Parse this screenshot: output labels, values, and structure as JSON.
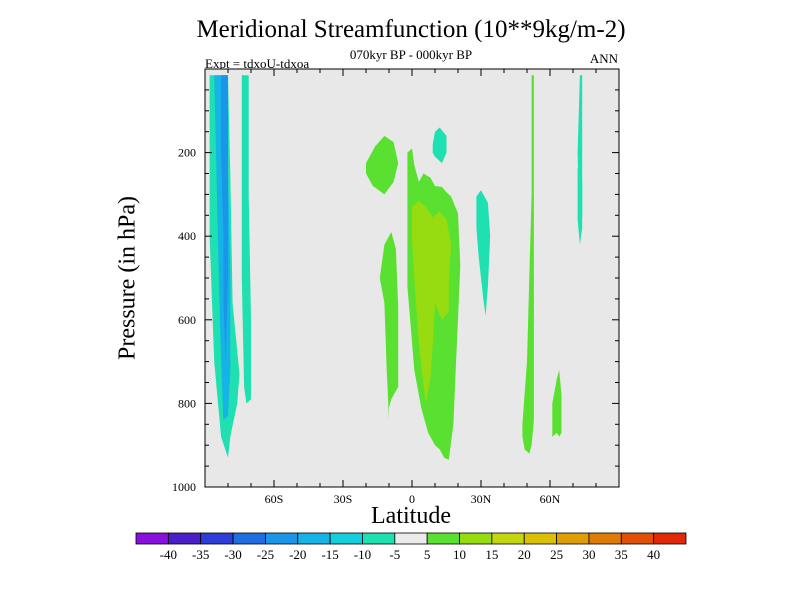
{
  "chart_data": {
    "type": "contour",
    "title": "Meridional Streamfunction (10**9kg/m-2)",
    "subtitle": "070kyr BP - 000kyr BP",
    "experiment_label": "Expt = tdxoU-tdxoa",
    "season_label": "ANN",
    "xlabel": "Latitude",
    "ylabel": "Pressure (in hPa)",
    "x_ticks": [
      {
        "value": -60,
        "label": "60S"
      },
      {
        "value": -30,
        "label": "30S"
      },
      {
        "value": 0,
        "label": "0"
      },
      {
        "value": 30,
        "label": "30N"
      },
      {
        "value": 60,
        "label": "60N"
      }
    ],
    "y_ticks": [
      200,
      400,
      600,
      800,
      1000
    ],
    "xlim": [
      -90,
      90
    ],
    "ylim": [
      1000,
      0
    ],
    "background_color": "#e8e8e8",
    "contour_levels": [
      -40,
      -35,
      -30,
      -25,
      -20,
      -15,
      -10,
      -5,
      5,
      10,
      15,
      20,
      25,
      30,
      35,
      40
    ],
    "colorbar_colors": [
      "#8a10e0",
      "#4a1ec8",
      "#2e3cd8",
      "#1e6ee2",
      "#1a96e8",
      "#16b4e6",
      "#14cedc",
      "#1ee0b0",
      "#ebebeb",
      "#5ae030",
      "#96dc10",
      "#c4d610",
      "#dcc008",
      "#e09e06",
      "#e07a06",
      "#e05006",
      "#e02a06"
    ],
    "regions": [
      {
        "level": -10,
        "color": "#1ee0b0",
        "points": [
          [
            -88,
            15
          ],
          [
            -80,
            15
          ],
          [
            -79,
            250
          ],
          [
            -78,
            560
          ],
          [
            -75,
            730
          ],
          [
            -76,
            800
          ],
          [
            -79,
            880
          ],
          [
            -80,
            930
          ],
          [
            -83,
            880
          ],
          [
            -86,
            700
          ],
          [
            -88,
            400
          ]
        ]
      },
      {
        "level": -10,
        "color": "#1ee0b0",
        "points": [
          [
            -74,
            15
          ],
          [
            -71,
            15
          ],
          [
            -71,
            300
          ],
          [
            -70,
            600
          ],
          [
            -70,
            790
          ],
          [
            -72,
            800
          ],
          [
            -73,
            760
          ],
          [
            -74,
            500
          ],
          [
            -74,
            200
          ]
        ]
      },
      {
        "level": -15,
        "color": "#16b4e6",
        "points": [
          [
            -86,
            15
          ],
          [
            -80,
            15
          ],
          [
            -80,
            250
          ],
          [
            -79,
            500
          ],
          [
            -79,
            720
          ],
          [
            -80,
            830
          ],
          [
            -82,
            840
          ],
          [
            -83,
            700
          ],
          [
            -84,
            500
          ],
          [
            -85,
            250
          ]
        ]
      },
      {
        "level": -20,
        "color": "#1a96e8",
        "points": [
          [
            -83,
            15
          ],
          [
            -80,
            15
          ],
          [
            -80,
            200
          ],
          [
            -80,
            500
          ],
          [
            -81,
            700
          ],
          [
            -82,
            560
          ],
          [
            -82,
            400
          ],
          [
            -83,
            200
          ]
        ]
      },
      {
        "level": 5,
        "color": "#5ae030",
        "points": [
          [
            -20,
            225
          ],
          [
            -16,
            185
          ],
          [
            -12,
            160
          ],
          [
            -8,
            175
          ],
          [
            -6,
            225
          ],
          [
            -8,
            270
          ],
          [
            -12,
            300
          ],
          [
            -17,
            280
          ],
          [
            -20,
            250
          ]
        ]
      },
      {
        "level": 5,
        "color": "#5ae030",
        "points": [
          [
            -12,
            560
          ],
          [
            -14,
            500
          ],
          [
            -12,
            420
          ],
          [
            -9,
            390
          ],
          [
            -7,
            430
          ],
          [
            -6,
            570
          ],
          [
            -6,
            760
          ],
          [
            -9,
            790
          ],
          [
            -10,
            810
          ],
          [
            -10,
            840
          ],
          [
            -11,
            720
          ]
        ]
      },
      {
        "level": 5,
        "color": "#5ae030",
        "points": [
          [
            -2,
            200
          ],
          [
            0,
            190
          ],
          [
            1,
            230
          ],
          [
            3,
            270
          ],
          [
            5,
            250
          ],
          [
            8,
            260
          ],
          [
            10,
            280
          ],
          [
            13,
            282
          ],
          [
            15,
            295
          ],
          [
            17,
            305
          ],
          [
            20,
            345
          ],
          [
            21,
            470
          ],
          [
            20,
            600
          ],
          [
            19,
            720
          ],
          [
            18,
            850
          ],
          [
            16,
            935
          ],
          [
            14,
            930
          ],
          [
            12,
            910
          ],
          [
            10,
            900
          ],
          [
            7,
            870
          ],
          [
            4,
            810
          ],
          [
            1,
            720
          ],
          [
            -2,
            520
          ],
          [
            -2,
            380
          ],
          [
            -2,
            260
          ]
        ]
      },
      {
        "level": 10,
        "color": "#96dc10",
        "points": [
          [
            0,
            330
          ],
          [
            3,
            315
          ],
          [
            6,
            330
          ],
          [
            9,
            355
          ],
          [
            12,
            340
          ],
          [
            15,
            360
          ],
          [
            17,
            420
          ],
          [
            16,
            510
          ],
          [
            16,
            580
          ],
          [
            13,
            600
          ],
          [
            10,
            560
          ],
          [
            9,
            660
          ],
          [
            8,
            740
          ],
          [
            6,
            800
          ],
          [
            3,
            660
          ],
          [
            1,
            500
          ],
          [
            0,
            410
          ]
        ]
      },
      {
        "level": 5,
        "color": "#5ae030",
        "points": [
          [
            52,
            15
          ],
          [
            53,
            15
          ],
          [
            53,
            150
          ],
          [
            53,
            400
          ],
          [
            53,
            640
          ],
          [
            53,
            840
          ],
          [
            52,
            900
          ],
          [
            51,
            920
          ],
          [
            49,
            910
          ],
          [
            48,
            880
          ],
          [
            48,
            850
          ],
          [
            50,
            700
          ],
          [
            51,
            500
          ],
          [
            52,
            300
          ]
        ]
      },
      {
        "level": 5,
        "color": "#5ae030",
        "points": [
          [
            63,
            740
          ],
          [
            64,
            720
          ],
          [
            65,
            780
          ],
          [
            65,
            870
          ],
          [
            64,
            880
          ],
          [
            63,
            870
          ],
          [
            61,
            880
          ],
          [
            61,
            800
          ],
          [
            62,
            770
          ]
        ]
      },
      {
        "level": -10,
        "color": "#1ee0b0",
        "points": [
          [
            9,
            180
          ],
          [
            10,
            150
          ],
          [
            12,
            140
          ],
          [
            15,
            160
          ],
          [
            15,
            200
          ],
          [
            13,
            225
          ],
          [
            10,
            210
          ],
          [
            9,
            200
          ]
        ]
      },
      {
        "level": -10,
        "color": "#1ee0b0",
        "points": [
          [
            28,
            305
          ],
          [
            30,
            290
          ],
          [
            33,
            320
          ],
          [
            34,
            400
          ],
          [
            33,
            520
          ],
          [
            32,
            590
          ],
          [
            31,
            550
          ],
          [
            29,
            450
          ],
          [
            28,
            380
          ]
        ]
      },
      {
        "level": -10,
        "color": "#1ee0b0",
        "points": [
          [
            73,
            15
          ],
          [
            74,
            15
          ],
          [
            74,
            350
          ],
          [
            73,
            400
          ],
          [
            72,
            200
          ]
        ]
      },
      {
        "level": -10,
        "color": "#1ee0b0",
        "points": [
          [
            72,
            240
          ],
          [
            73,
            210
          ],
          [
            74,
            270
          ],
          [
            74,
            380
          ],
          [
            73,
            420
          ],
          [
            72,
            360
          ]
        ]
      }
    ]
  }
}
